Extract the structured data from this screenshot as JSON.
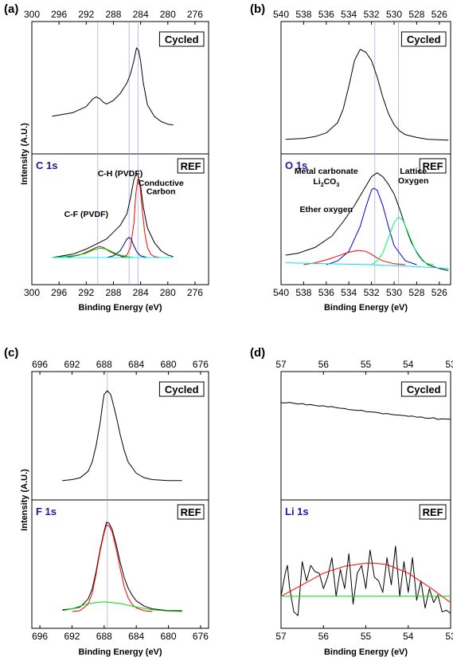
{
  "chart_data": [
    {
      "type": "line",
      "panel_label": "(a)",
      "xlabel": "Binding Energy (eV)",
      "ylabel": "Intensity (A.U.)",
      "xlim": [
        300,
        274
      ],
      "xticks": [
        "300",
        "296",
        "292",
        "288",
        "284",
        "280",
        "276"
      ],
      "xtick_values": [
        300,
        296,
        292,
        288,
        284,
        280,
        276
      ],
      "reference_lines_x": [
        290.3,
        285.7,
        284.4
      ],
      "top": {
        "tag": "Cycled",
        "ylim": [
          0,
          100
        ],
        "series": [
          {
            "color": "#000000",
            "x": [
              297.0,
              294.0,
              292.0,
              291.0,
              290.5,
              290.0,
              289.5,
              289.0,
              288.0,
              287.0,
              286.0,
              285.5,
              285.0,
              284.6,
              284.3,
              284.0,
              283.6,
              283.0,
              282.0,
              281.0,
              280.0,
              279.2
            ],
            "y": [
              22,
              26,
              33,
              42,
              44,
              42,
              38,
              36,
              40,
              48,
              60,
              70,
              85,
              100,
              97,
              85,
              60,
              35,
              22,
              16,
              13,
              12
            ]
          }
        ]
      },
      "bottom": {
        "tag": "REF",
        "element": "C 1s",
        "ylim": [
          0,
          100
        ],
        "annotations": [
          {
            "text": "C-H (PVDF)",
            "x": 287.0,
            "y": 96
          },
          {
            "text": "C-F (PVDF)",
            "x": 292.0,
            "y": 48
          },
          {
            "text": "Conductive",
            "x": 281.0,
            "y": 85
          },
          {
            "text": "Carbon",
            "x": 281.0,
            "y": 75
          }
        ],
        "series": [
          {
            "color": "#000000",
            "x": [
              297.0,
              294.0,
              292.0,
              291.0,
              290.0,
              289.0,
              288.0,
              287.0,
              286.0,
              285.5,
              285.0,
              284.6,
              284.4,
              284.0,
              283.6,
              283.0,
              282.0,
              281.0,
              280.0,
              279.2
            ],
            "y": [
              0,
              4,
              10,
              14,
              18,
              22,
              30,
              38,
              52,
              70,
              92,
              100,
              98,
              85,
              60,
              35,
              18,
              8,
              3,
              1
            ]
          },
          {
            "color": "#ff0000",
            "x": [
              287.0,
              286.0,
              285.5,
              285.0,
              284.7,
              284.4,
              284.1,
              283.8,
              283.4,
              283.0,
              282.5,
              282.0,
              281.0,
              280.0
            ],
            "y": [
              0,
              3,
              12,
              40,
              75,
              93,
              85,
              60,
              30,
              12,
              4,
              1,
              0,
              0
            ]
          },
          {
            "color": "#000080",
            "x": [
              289.0,
              288.0,
              287.0,
              286.5,
              286.0,
              285.7,
              285.4,
              285.0,
              284.5,
              284.0,
              283.0,
              282.0
            ],
            "y": [
              0,
              2,
              8,
              15,
              22,
              24,
              22,
              14,
              6,
              2,
              0,
              0
            ]
          },
          {
            "color": "#8b0000",
            "x": [
              295.0,
              293.0,
              291.5,
              290.5,
              290.0,
              289.5,
              288.5,
              287.5,
              286.0,
              284.0
            ],
            "y": [
              0,
              3,
              8,
              12,
              13,
              12,
              7,
              3,
              0,
              0
            ]
          },
          {
            "color": "#00cc00",
            "x": [
              297.0,
              294.0,
              292.0,
              291.0,
              290.0,
              289.0,
              288.0,
              287.0,
              286.0,
              285.0,
              284.0,
              283.0
            ],
            "y": [
              0,
              2,
              5,
              9,
              11,
              10,
              6,
              3,
              1,
              0,
              0,
              0
            ]
          },
          {
            "color": "#00ffff",
            "x": [
              297.0,
              290.0,
              285.0,
              280.0,
              279.2
            ],
            "y": [
              0,
              0,
              0,
              0,
              0
            ]
          }
        ]
      }
    },
    {
      "type": "line",
      "panel_label": "(b)",
      "xlabel": "Binding Energy (eV)",
      "ylabel": "",
      "xlim": [
        540,
        525
      ],
      "xticks": [
        "540",
        "538",
        "536",
        "534",
        "532",
        "530",
        "528",
        "526"
      ],
      "xtick_values": [
        540,
        538,
        536,
        534,
        532,
        530,
        528,
        526
      ],
      "reference_lines_x": [
        531.7,
        529.6
      ],
      "top": {
        "tag": "Cycled",
        "ylim": [
          0,
          100
        ],
        "series": [
          {
            "color": "#000000",
            "x": [
              539.6,
              538.0,
              537.0,
              536.0,
              535.0,
              534.5,
              534.0,
              533.5,
              533.0,
              532.5,
              532.0,
              531.5,
              531.0,
              530.5,
              530.0,
              529.5,
              529.0,
              528.0,
              527.0,
              525.2
            ],
            "y": [
              2,
              3,
              5,
              9,
              20,
              35,
              60,
              88,
              100,
              97,
              88,
              70,
              48,
              30,
              18,
              11,
              7,
              4,
              2,
              1
            ]
          }
        ]
      },
      "bottom": {
        "tag": "REF",
        "element": "O 1s",
        "ylim": [
          0,
          100
        ],
        "annotations": [
          {
            "text": "Metal carbonate",
            "x": 536.0,
            "y": 95
          },
          {
            "text": "Li2CO3",
            "x": 536.0,
            "y": 84
          },
          {
            "text": "Ether oxygen",
            "x": 536.0,
            "y": 55
          },
          {
            "text": "Lattice",
            "x": 528.3,
            "y": 95
          },
          {
            "text": "Oxygen",
            "x": 528.3,
            "y": 85
          }
        ],
        "series": [
          {
            "color": "#000000",
            "x": [
              539.6,
              538.5,
              537.0,
              535.5,
              534.5,
              533.5,
              533.0,
              532.5,
              532.0,
              531.5,
              531.0,
              530.5,
              530.0,
              529.5,
              529.0,
              528.5,
              528.0,
              527.5,
              527.0,
              526.0,
              525.2
            ],
            "y": [
              10,
              12,
              18,
              30,
              45,
              62,
              72,
              82,
              92,
              96,
              92,
              84,
              74,
              58,
              40,
              24,
              13,
              5,
              0,
              -4,
              -6
            ]
          },
          {
            "color": "#0000cc",
            "x": [
              536.0,
              535.0,
              534.0,
              533.0,
              532.5,
              532.0,
              531.8,
              531.5,
              531.0,
              530.5,
              530.0,
              529.0,
              528.0
            ],
            "y": [
              0,
              4,
              14,
              40,
              60,
              78,
              80,
              78,
              62,
              40,
              20,
              4,
              0
            ]
          },
          {
            "color": "#ff0000",
            "x": [
              538.0,
              537.0,
              536.0,
              535.0,
              534.0,
              533.2,
              532.5,
              532.0,
              531.5,
              531.0,
              530.0,
              529.0
            ],
            "y": [
              0,
              2,
              5,
              9,
              13,
              15,
              14,
              11,
              7,
              4,
              1,
              0
            ]
          },
          {
            "color": "#00ff66",
            "x": [
              532.0,
              531.5,
              531.0,
              530.5,
              530.0,
              529.6,
              529.2,
              528.8,
              528.5,
              528.0,
              527.5,
              527.0,
              526.5
            ],
            "y": [
              0,
              4,
              12,
              28,
              44,
              50,
              46,
              35,
              26,
              12,
              4,
              1,
              0
            ]
          },
          {
            "color": "#00e5e5",
            "x": [
              539.6,
              536.0,
              532.0,
              528.0,
              525.2
            ],
            "y": [
              2,
              1,
              0,
              -2,
              -4
            ]
          }
        ]
      }
    },
    {
      "type": "line",
      "panel_label": "(c)",
      "xlabel": "Binding Energy (eV)",
      "ylabel": "Intensity (A.U.)",
      "xlim": [
        697,
        675
      ],
      "xticks": [
        "696",
        "692",
        "688",
        "684",
        "680",
        "676"
      ],
      "xtick_values": [
        696,
        692,
        688,
        684,
        680,
        676
      ],
      "reference_lines_x": [
        687.6
      ],
      "top": {
        "tag": "Cycled",
        "ylim": [
          0,
          100
        ],
        "series": [
          {
            "color": "#000000",
            "x": [
              693.2,
              692.0,
              691.0,
              690.0,
              689.5,
              689.0,
              688.5,
              688.2,
              688.0,
              687.6,
              687.2,
              687.0,
              686.5,
              686.0,
              685.5,
              685.0,
              684.0,
              683.0,
              682.0,
              680.0,
              678.3
            ],
            "y": [
              2,
              3,
              5,
              12,
              22,
              40,
              65,
              85,
              96,
              100,
              96,
              90,
              72,
              52,
              35,
              22,
              10,
              5,
              3,
              2,
              2
            ]
          }
        ]
      },
      "bottom": {
        "tag": "REF",
        "element": "F 1s",
        "ylim": [
          0,
          100
        ],
        "series": [
          {
            "color": "#000000",
            "x": [
              693.2,
              692.0,
              691.0,
              690.0,
              689.5,
              689.0,
              688.5,
              688.0,
              687.7,
              687.4,
              687.0,
              686.5,
              686.0,
              685.5,
              685.0,
              684.5,
              684.0,
              683.0,
              682.0,
              681.0,
              680.0,
              678.3
            ],
            "y": [
              2,
              3,
              5,
              14,
              25,
              45,
              70,
              90,
              100,
              99,
              92,
              75,
              55,
              38,
              26,
              18,
              12,
              6,
              3,
              2,
              1,
              1
            ]
          },
          {
            "color": "#ff0000",
            "x": [
              692.0,
              691.0,
              690.0,
              689.5,
              689.0,
              688.5,
              688.0,
              687.7,
              687.4,
              687.0,
              686.5,
              686.0,
              685.5,
              685.0,
              684.5,
              684.0,
              683.0,
              682.0
            ],
            "y": [
              0,
              1,
              8,
              20,
              42,
              68,
              88,
              97,
              96,
              89,
              70,
              48,
              28,
              15,
              8,
              4,
              1,
              0
            ]
          },
          {
            "color": "#00dd00",
            "x": [
              693.2,
              692.0,
              690.0,
              688.0,
              686.0,
              684.0,
              682.0,
              680.0,
              678.3
            ],
            "y": [
              1,
              3,
              9,
              11,
              9,
              5,
              2,
              0.5,
              0
            ]
          }
        ]
      }
    },
    {
      "type": "line",
      "panel_label": "(d)",
      "xlabel": "Binding Energy (eV)",
      "ylabel": "",
      "xlim": [
        57,
        53
      ],
      "xticks": [
        "57",
        "56",
        "55",
        "54",
        "53"
      ],
      "xtick_values": [
        57,
        56,
        55,
        54,
        53
      ],
      "top": {
        "tag": "Cycled",
        "ylim": [
          0,
          100
        ],
        "series": [
          {
            "color": "#000000",
            "x": [
              57.0,
              56.9,
              56.8,
              56.7,
              56.6,
              56.5,
              56.4,
              56.3,
              56.2,
              56.1,
              56.0,
              55.9,
              55.8,
              55.7,
              55.6,
              55.5,
              55.4,
              55.3,
              55.2,
              55.1,
              55.0,
              54.9,
              54.8,
              54.7,
              54.6,
              54.5,
              54.4,
              54.3,
              54.2,
              54.1,
              54.0,
              53.9,
              53.8,
              53.7,
              53.6,
              53.5,
              53.4,
              53.3,
              53.2,
              53.1,
              53.0
            ],
            "y": [
              100,
              99,
              101,
              98,
              95,
              97,
              92,
              93,
              90,
              88,
              89,
              85,
              86,
              82,
              80,
              79,
              75,
              74,
              72,
              73,
              68,
              67,
              66,
              64,
              60,
              61,
              58,
              56,
              55,
              54,
              51,
              52,
              48,
              49,
              45,
              44,
              46,
              40,
              42,
              41,
              41
            ]
          }
        ]
      },
      "bottom": {
        "tag": "REF",
        "element": "Li 1s",
        "ylim": [
          0,
          100
        ],
        "series": [
          {
            "color": "#000000",
            "x": [
              57.0,
              56.9,
              56.85,
              56.8,
              56.7,
              56.6,
              56.5,
              56.4,
              56.3,
              56.2,
              56.1,
              56.0,
              55.9,
              55.8,
              55.7,
              55.6,
              55.5,
              55.4,
              55.3,
              55.2,
              55.1,
              55.0,
              54.9,
              54.8,
              54.7,
              54.6,
              54.5,
              54.4,
              54.3,
              54.2,
              54.1,
              54.0,
              53.9,
              53.8,
              53.7,
              53.6,
              53.5,
              53.4,
              53.3,
              53.2,
              53.1,
              53.0
            ],
            "y": [
              30,
              60,
              70,
              42,
              10,
              5,
              75,
              50,
              70,
              62,
              60,
              40,
              55,
              80,
              30,
              65,
              40,
              85,
              20,
              60,
              70,
              40,
              90,
              55,
              50,
              35,
              80,
              45,
              95,
              30,
              75,
              35,
              80,
              25,
              50,
              15,
              40,
              22,
              32,
              10,
              12,
              8
            ]
          },
          {
            "color": "#ff0000",
            "x": [
              57.0,
              56.5,
              56.0,
              55.5,
              55.0,
              54.8,
              54.5,
              54.0,
              53.5,
              53.0
            ],
            "y": [
              30,
              45,
              60,
              69,
              73,
              73,
              71,
              60,
              42,
              22
            ]
          },
          {
            "color": "#00dd00",
            "x": [
              57.0,
              55.0,
              53.0
            ],
            "y": [
              30,
              30,
              30
            ]
          }
        ]
      }
    }
  ]
}
